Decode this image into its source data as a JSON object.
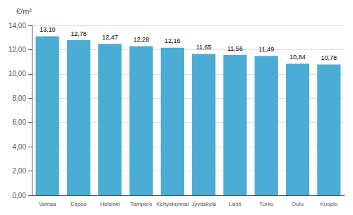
{
  "chart_data": {
    "type": "bar",
    "ylabel": "€/m²",
    "categories": [
      "Vantaa",
      "Espoo",
      "Helsinki",
      "Tampere",
      "Kehyskunnat",
      "Jyväskylä",
      "Lahti",
      "Turku",
      "Oulu",
      "Kuopio"
    ],
    "values": [
      13.1,
      12.78,
      12.47,
      12.28,
      12.16,
      11.65,
      11.56,
      11.49,
      10.84,
      10.78
    ],
    "value_labels": [
      "13,10",
      "12,78",
      "12,47",
      "12,28",
      "12,16",
      "11,65",
      "11,56",
      "11,49",
      "10,84",
      "10,78"
    ],
    "data_labels": true,
    "color": "#4BADD4",
    "ylim": [
      0,
      14.0
    ],
    "yticks": [
      {
        "value": 0.0,
        "label": "0,00"
      },
      {
        "value": 2.0,
        "label": "2,00"
      },
      {
        "value": 4.0,
        "label": "4,00"
      },
      {
        "value": 6.0,
        "label": "6,00"
      },
      {
        "value": 8.0,
        "label": "8,00"
      },
      {
        "value": 10.0,
        "label": "10,00"
      },
      {
        "value": 12.0,
        "label": "12,00"
      },
      {
        "value": 14.0,
        "label": "14,00"
      }
    ],
    "grid": true
  }
}
